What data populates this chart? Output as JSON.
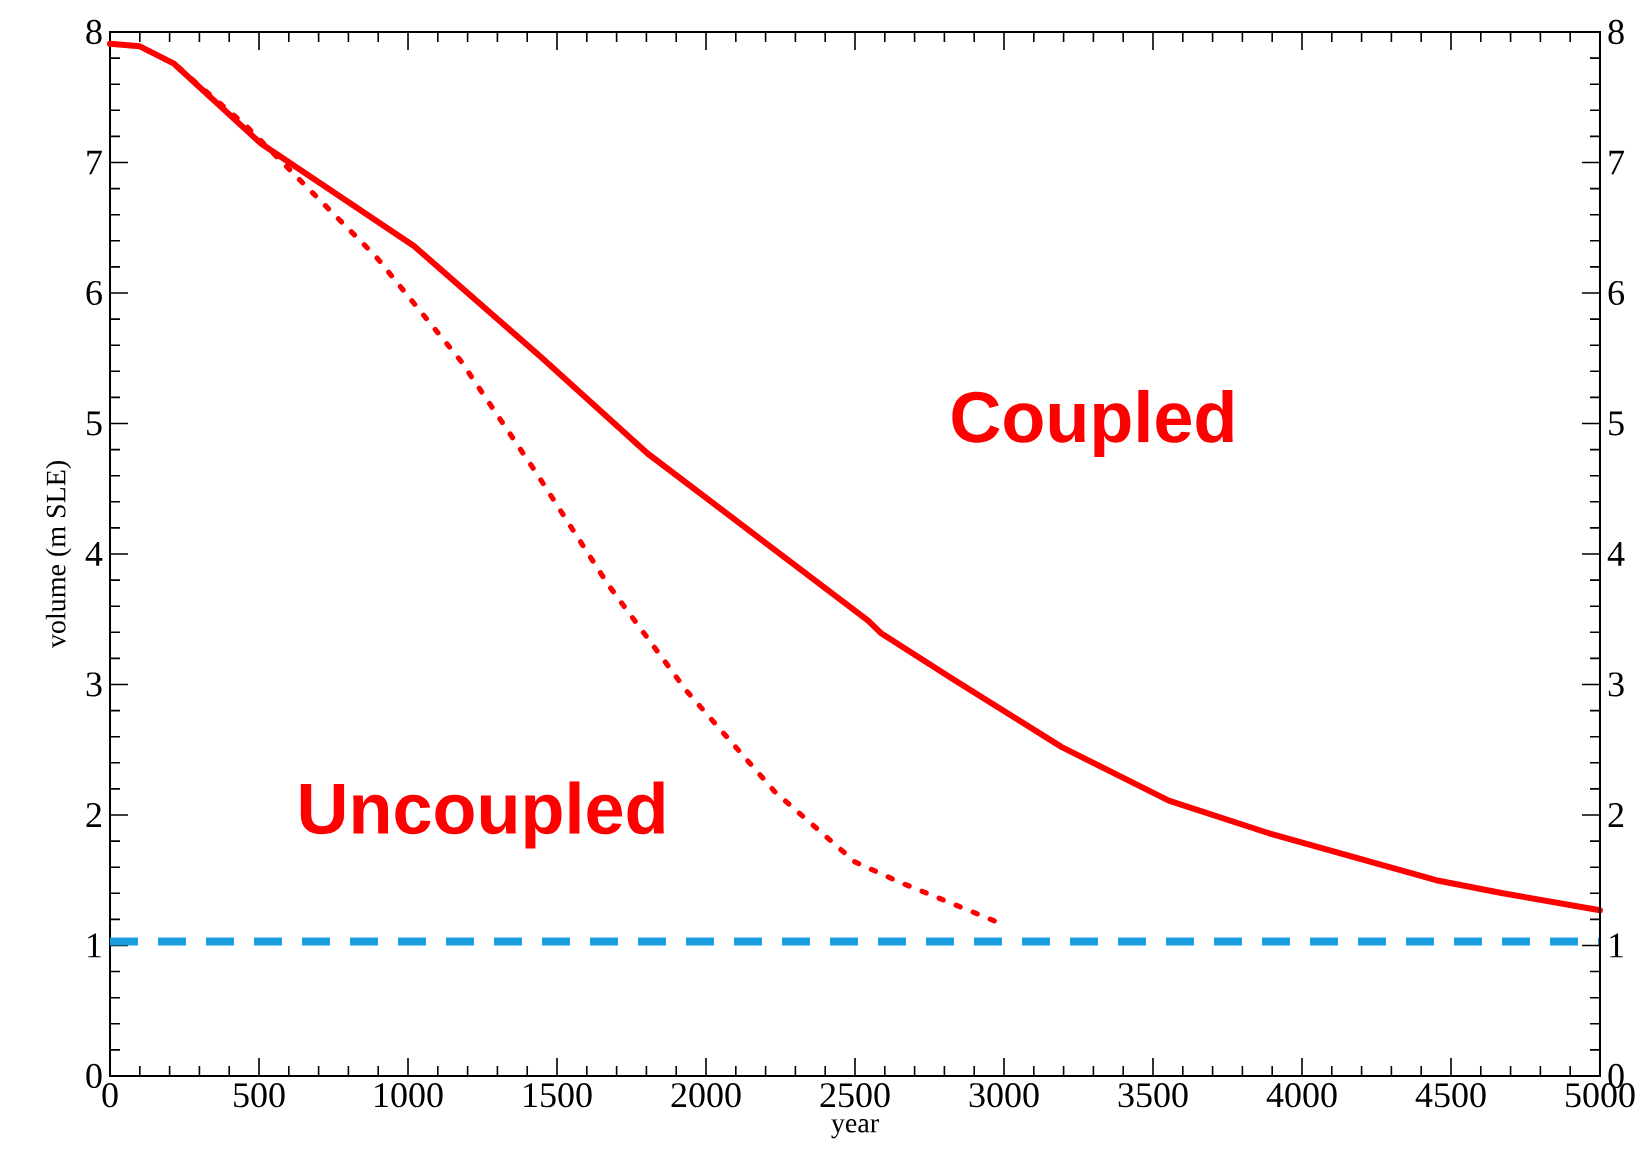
{
  "chart_data": {
    "type": "line",
    "xlabel": "year",
    "ylabel": "volume (m SLE)",
    "xlim": [
      0,
      5000
    ],
    "xticks": [
      0,
      500,
      1000,
      1500,
      2000,
      2500,
      3000,
      3500,
      4000,
      4500,
      5000
    ],
    "ylim": [
      0,
      8
    ],
    "yticks": [
      0,
      1,
      2,
      3,
      4,
      5,
      6,
      7,
      8
    ],
    "y2lim": [
      0,
      8
    ],
    "y2ticks": [
      0,
      1,
      2,
      3,
      4,
      5,
      6,
      7,
      8
    ],
    "grid": false,
    "ref_lines": [
      {
        "axis": "y",
        "value": 1.03,
        "color": "#1a9ee0",
        "line_style": "dashed"
      }
    ],
    "series": [
      {
        "name": "Coupled",
        "color": "#ff0000",
        "line_style": "solid",
        "x": [
          0,
          100,
          213,
          504,
          1020,
          1446,
          1804,
          2544,
          2589,
          2836,
          3194,
          3553,
          3889,
          4450,
          4674,
          5000
        ],
        "values": [
          7.91,
          7.89,
          7.76,
          7.15,
          6.36,
          5.51,
          4.77,
          3.49,
          3.39,
          3.03,
          2.52,
          2.11,
          1.86,
          1.5,
          1.4,
          1.27
        ]
      },
      {
        "name": "Uncoupled",
        "color": "#ff0000",
        "line_style": "dotted",
        "x": [
          0,
          100,
          213,
          457,
          892,
          1177,
          1428,
          1670,
          1935,
          2230,
          2500,
          2645,
          2977
        ],
        "values": [
          7.91,
          7.89,
          7.76,
          7.28,
          6.28,
          5.48,
          4.63,
          3.77,
          2.95,
          2.18,
          1.64,
          1.49,
          1.18
        ]
      }
    ]
  }
}
